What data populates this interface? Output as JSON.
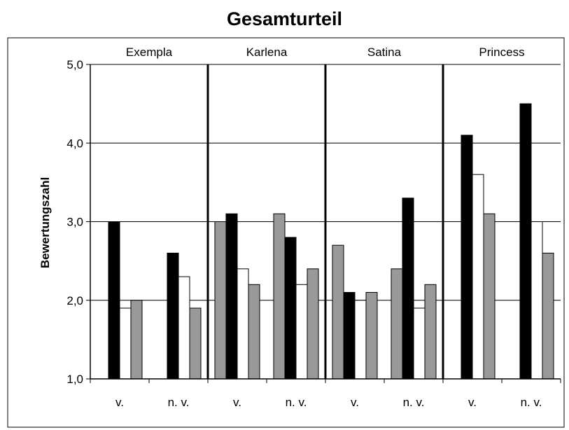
{
  "chart_data": {
    "type": "bar",
    "title": "Gesamturteil",
    "ylabel": "Bewertungszahl",
    "xlabel": "",
    "ylim": [
      1.0,
      5.0
    ],
    "yticks": [
      "1,0",
      "2,0",
      "3,0",
      "4,0",
      "5,0"
    ],
    "grid": true,
    "legend": "none",
    "groups": [
      {
        "name": "Exempla",
        "subgroups": [
          {
            "label": "v.",
            "bars": [
              {
                "value": null,
                "fill": "#999999"
              },
              {
                "value": 3.0,
                "fill": "#000000"
              },
              {
                "value": 1.9,
                "fill": "#ffffff"
              },
              {
                "value": 2.0,
                "fill": "#999999"
              }
            ]
          },
          {
            "label": "n. v.",
            "bars": [
              {
                "value": null,
                "fill": "#999999"
              },
              {
                "value": 2.6,
                "fill": "#000000"
              },
              {
                "value": 2.3,
                "fill": "#ffffff"
              },
              {
                "value": 1.9,
                "fill": "#999999"
              }
            ]
          }
        ]
      },
      {
        "name": "Karlena",
        "subgroups": [
          {
            "label": "v.",
            "bars": [
              {
                "value": 3.0,
                "fill": "#999999"
              },
              {
                "value": 3.1,
                "fill": "#000000"
              },
              {
                "value": 2.4,
                "fill": "#ffffff"
              },
              {
                "value": 2.2,
                "fill": "#999999"
              }
            ]
          },
          {
            "label": "n. v.",
            "bars": [
              {
                "value": 3.1,
                "fill": "#999999"
              },
              {
                "value": 2.8,
                "fill": "#000000"
              },
              {
                "value": 2.2,
                "fill": "#ffffff"
              },
              {
                "value": 2.4,
                "fill": "#999999"
              }
            ]
          }
        ]
      },
      {
        "name": "Satina",
        "subgroups": [
          {
            "label": "v.",
            "bars": [
              {
                "value": 2.7,
                "fill": "#999999"
              },
              {
                "value": 2.1,
                "fill": "#000000"
              },
              {
                "value": 2.0,
                "fill": "#ffffff"
              },
              {
                "value": 2.1,
                "fill": "#999999"
              }
            ]
          },
          {
            "label": "n. v.",
            "bars": [
              {
                "value": 2.4,
                "fill": "#999999"
              },
              {
                "value": 3.3,
                "fill": "#000000"
              },
              {
                "value": 1.9,
                "fill": "#ffffff"
              },
              {
                "value": 2.2,
                "fill": "#999999"
              }
            ]
          }
        ]
      },
      {
        "name": "Princess",
        "subgroups": [
          {
            "label": "v.",
            "bars": [
              {
                "value": null,
                "fill": "#999999"
              },
              {
                "value": 4.1,
                "fill": "#000000"
              },
              {
                "value": 3.6,
                "fill": "#ffffff"
              },
              {
                "value": 3.1,
                "fill": "#999999"
              }
            ]
          },
          {
            "label": "n. v.",
            "bars": [
              {
                "value": null,
                "fill": "#999999"
              },
              {
                "value": 4.5,
                "fill": "#000000"
              },
              {
                "value": 3.0,
                "fill": "#ffffff"
              },
              {
                "value": 2.6,
                "fill": "#999999"
              }
            ]
          }
        ]
      }
    ]
  }
}
